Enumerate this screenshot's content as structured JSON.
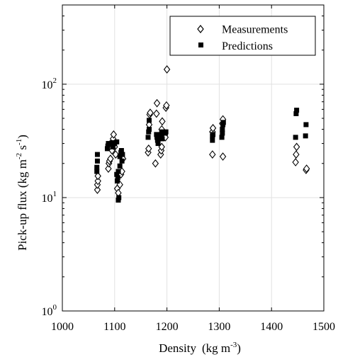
{
  "chart_data": {
    "type": "scatter",
    "title": "",
    "xlabel": "Density",
    "xlabel_unit": "(kg m",
    "xlabel_unit_sup": "-3",
    "xlabel_unit_close": ")",
    "ylabel": "Pick-up flux (kg m",
    "ylabel_sup1": "-2",
    "ylabel_mid": " s",
    "ylabel_sup2": "-1",
    "ylabel_close": ")",
    "xlim": [
      1000,
      1500
    ],
    "ylim": [
      1,
      500
    ],
    "y_scale": "log",
    "grid": true,
    "legend_position": "top-right",
    "x_ticks": [
      1000,
      1100,
      1200,
      1300,
      1400,
      1500
    ],
    "x_tick_labels": [
      "1000",
      "1100",
      "1200",
      "1300",
      "1400",
      "1500"
    ],
    "y_ticks": [
      {
        "value": 1,
        "base": "10",
        "exp": "0"
      },
      {
        "value": 10,
        "base": "10",
        "exp": "1"
      },
      {
        "value": 100,
        "base": "10",
        "exp": "2"
      }
    ],
    "series": [
      {
        "name": "Measurements",
        "marker": "open-diamond",
        "points": [
          [
            1067,
            11.7
          ],
          [
            1067,
            13.0
          ],
          [
            1068,
            14.0
          ],
          [
            1068,
            15.5
          ],
          [
            1088,
            18.0
          ],
          [
            1089,
            20.0
          ],
          [
            1090,
            21.0
          ],
          [
            1092,
            22.0
          ],
          [
            1095,
            26.0
          ],
          [
            1096,
            29.0
          ],
          [
            1097,
            33.0
          ],
          [
            1098,
            36.0
          ],
          [
            1100,
            28.0
          ],
          [
            1102,
            24.0
          ],
          [
            1105,
            12.0
          ],
          [
            1107,
            11.0
          ],
          [
            1110,
            13.0
          ],
          [
            1112,
            16.0
          ],
          [
            1114,
            17.0
          ],
          [
            1116,
            22.0
          ],
          [
            1164,
            25.0
          ],
          [
            1165,
            27.0
          ],
          [
            1166,
            44.0
          ],
          [
            1167,
            54.0
          ],
          [
            1168,
            56.0
          ],
          [
            1178,
            20.0
          ],
          [
            1180,
            55.0
          ],
          [
            1181,
            68.0
          ],
          [
            1188,
            24.0
          ],
          [
            1189,
            26.0
          ],
          [
            1190,
            28.0
          ],
          [
            1190,
            40.0
          ],
          [
            1191,
            47.0
          ],
          [
            1197,
            34.0
          ],
          [
            1198,
            62.0
          ],
          [
            1199,
            65.0
          ],
          [
            1200,
            135.0
          ],
          [
            1287,
            24.0
          ],
          [
            1287,
            38.0
          ],
          [
            1288,
            41.0
          ],
          [
            1307,
            23.0
          ],
          [
            1306,
            45.0
          ],
          [
            1307,
            49.0
          ],
          [
            1446,
            20.5
          ],
          [
            1447,
            24.0
          ],
          [
            1448,
            28.0
          ],
          [
            1466,
            17.5
          ],
          [
            1467,
            18.0
          ]
        ]
      },
      {
        "name": "Predictions",
        "marker": "filled-square",
        "points": [
          [
            1066,
            17.0
          ],
          [
            1066,
            18.5
          ],
          [
            1067,
            21.0
          ],
          [
            1067,
            24.0
          ],
          [
            1086,
            27.0
          ],
          [
            1087,
            28.5
          ],
          [
            1088,
            30.0
          ],
          [
            1090,
            29.5
          ],
          [
            1095,
            30.5
          ],
          [
            1097,
            28.0
          ],
          [
            1100,
            30.0
          ],
          [
            1104,
            31.0
          ],
          [
            1104,
            16.0
          ],
          [
            1105,
            14.0
          ],
          [
            1106,
            15.0
          ],
          [
            1107,
            17.0
          ],
          [
            1107,
            9.5
          ],
          [
            1108,
            10.0
          ],
          [
            1110,
            19.0
          ],
          [
            1110,
            23.0
          ],
          [
            1112,
            25.0
          ],
          [
            1113,
            26.0
          ],
          [
            1114,
            21.0
          ],
          [
            1115,
            24.0
          ],
          [
            1164,
            34.0
          ],
          [
            1165,
            38.0
          ],
          [
            1166,
            40.0
          ],
          [
            1166,
            48.0
          ],
          [
            1180,
            36.0
          ],
          [
            1181,
            34.0
          ],
          [
            1182,
            32.0
          ],
          [
            1183,
            30.0
          ],
          [
            1188,
            34.0
          ],
          [
            1189,
            36.0
          ],
          [
            1190,
            38.0
          ],
          [
            1191,
            33.0
          ],
          [
            1197,
            37.0
          ],
          [
            1198,
            38.0
          ],
          [
            1287,
            32.0
          ],
          [
            1287,
            35.0
          ],
          [
            1288,
            36.0
          ],
          [
            1305,
            34.0
          ],
          [
            1306,
            37.0
          ],
          [
            1306,
            40.0
          ],
          [
            1307,
            44.0
          ],
          [
            1308,
            46.0
          ],
          [
            1446,
            34.0
          ],
          [
            1447,
            55.0
          ],
          [
            1448,
            59.0
          ],
          [
            1465,
            35.0
          ],
          [
            1466,
            44.0
          ]
        ]
      }
    ]
  }
}
